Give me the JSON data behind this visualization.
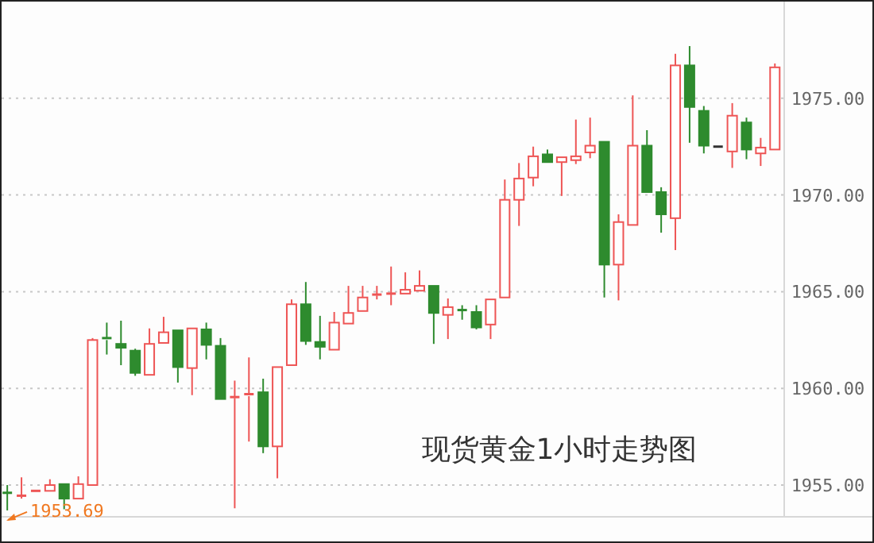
{
  "chart_data": {
    "type": "candlestick",
    "title": "现货黄金1小时走势图",
    "categories": [
      null,
      null,
      null,
      null,
      null,
      null,
      null,
      null,
      null,
      null,
      null,
      null,
      null,
      null,
      null,
      null,
      null,
      null,
      null,
      null,
      null,
      null,
      null,
      null,
      null,
      null,
      null,
      null,
      null,
      null,
      null,
      null,
      null,
      null,
      null,
      null,
      null,
      null,
      null,
      null,
      null,
      null,
      null,
      null,
      null,
      null,
      null,
      null,
      null,
      null,
      null,
      null,
      null,
      null,
      null
    ],
    "ohlc": [
      [
        1954.6,
        1955.0,
        1953.69,
        1954.55
      ],
      [
        1954.4,
        1955.4,
        1954.3,
        1954.45
      ],
      [
        1954.65,
        1954.7,
        1954.65,
        1954.7
      ],
      [
        1954.7,
        1955.3,
        1954.7,
        1955.0
      ],
      [
        1955.05,
        1955.05,
        1953.75,
        1954.3
      ],
      [
        1954.3,
        1955.45,
        1954.3,
        1955.05
      ],
      [
        1955.0,
        1962.6,
        1955.0,
        1962.5
      ],
      [
        1962.6,
        1963.4,
        1961.75,
        1962.5
      ],
      [
        1962.3,
        1963.5,
        1961.2,
        1962.1
      ],
      [
        1961.95,
        1962.05,
        1960.65,
        1960.8
      ],
      [
        1960.7,
        1963.1,
        1960.7,
        1962.3
      ],
      [
        1962.35,
        1963.7,
        1962.35,
        1962.9
      ],
      [
        1963.0,
        1963.0,
        1960.3,
        1961.1
      ],
      [
        1961.05,
        1963.1,
        1959.65,
        1963.1
      ],
      [
        1963.05,
        1963.4,
        1961.5,
        1962.25
      ],
      [
        1962.2,
        1962.6,
        1959.45,
        1959.45
      ],
      [
        1959.5,
        1960.4,
        1953.8,
        1959.55
      ],
      [
        1959.6,
        1961.6,
        1957.25,
        1959.7
      ],
      [
        1959.8,
        1960.5,
        1956.65,
        1957.0
      ],
      [
        1957.0,
        1961.1,
        1955.35,
        1961.1
      ],
      [
        1961.2,
        1964.6,
        1961.2,
        1964.35
      ],
      [
        1964.35,
        1965.5,
        1962.25,
        1962.45
      ],
      [
        1962.4,
        1963.75,
        1961.5,
        1962.15
      ],
      [
        1962.0,
        1963.95,
        1962.0,
        1963.4
      ],
      [
        1963.35,
        1965.3,
        1963.35,
        1963.9
      ],
      [
        1964.0,
        1965.3,
        1964.0,
        1964.7
      ],
      [
        1964.8,
        1965.3,
        1964.6,
        1964.85
      ],
      [
        1964.85,
        1966.3,
        1964.3,
        1964.9
      ],
      [
        1964.9,
        1966.0,
        1964.9,
        1965.1
      ],
      [
        1965.05,
        1966.1,
        1965.05,
        1965.3
      ],
      [
        1965.3,
        1965.3,
        1962.3,
        1963.9
      ],
      [
        1963.8,
        1964.65,
        1962.55,
        1964.2
      ],
      [
        1964.05,
        1964.3,
        1963.55,
        1964.0
      ],
      [
        1963.95,
        1964.3,
        1963.05,
        1963.15
      ],
      [
        1963.3,
        1964.6,
        1962.55,
        1964.6
      ],
      [
        1964.7,
        1970.8,
        1964.7,
        1969.75
      ],
      [
        1969.75,
        1971.65,
        1968.4,
        1970.85
      ],
      [
        1970.9,
        1972.5,
        1970.45,
        1972.0
      ],
      [
        1972.1,
        1972.35,
        1971.7,
        1971.7
      ],
      [
        1971.7,
        1971.95,
        1969.95,
        1971.95
      ],
      [
        1971.8,
        1973.9,
        1971.6,
        1972.0
      ],
      [
        1972.2,
        1974.0,
        1971.9,
        1972.55
      ],
      [
        1972.75,
        1972.75,
        1964.7,
        1966.4
      ],
      [
        1966.4,
        1969.0,
        1964.55,
        1968.6
      ],
      [
        1968.45,
        1975.15,
        1968.45,
        1972.55
      ],
      [
        1972.55,
        1973.35,
        1970.15,
        1970.15
      ],
      [
        1970.15,
        1970.4,
        1968.05,
        1969.0
      ],
      [
        1968.8,
        1977.3,
        1967.15,
        1976.7
      ],
      [
        1976.7,
        1977.7,
        1972.7,
        1974.55
      ],
      [
        1974.35,
        1974.6,
        1972.15,
        1972.55
      ],
      [
        1972.5,
        1972.5,
        1972.5,
        1972.5
      ],
      [
        1972.25,
        1974.75,
        1971.4,
        1974.1
      ],
      [
        1973.75,
        1974.0,
        1971.85,
        1972.35
      ],
      [
        1972.15,
        1972.95,
        1971.5,
        1972.45
      ],
      [
        1972.35,
        1976.8,
        1972.35,
        1976.6
      ]
    ],
    "ylim": [
      1953.4,
      1980
    ],
    "yticks": [
      {
        "value": 1955,
        "label": "1955.00"
      },
      {
        "value": 1960,
        "label": "1960.00"
      },
      {
        "value": 1965,
        "label": "1965.00"
      },
      {
        "value": 1970,
        "label": "1970.00"
      },
      {
        "value": 1975,
        "label": "1975.00"
      }
    ],
    "grid": "y",
    "annotations": [
      {
        "text": "1953.69",
        "y": 1953.69
      }
    ]
  }
}
